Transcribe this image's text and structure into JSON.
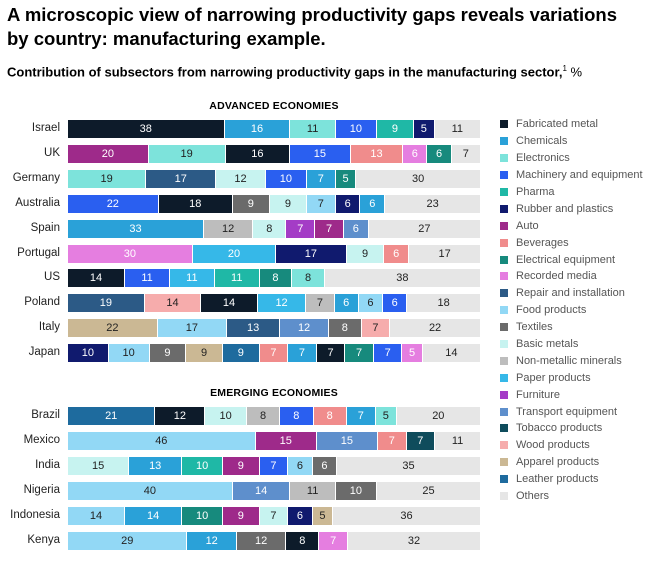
{
  "title": "A microscopic view of narrowing productivity gaps reveals variations by country: manufacturing example.",
  "subtitle": "Contribution of subsectors from narrowing productivity gaps in the manufacturing sector,",
  "footnote_mark": "1",
  "unit": "%",
  "chart_data": {
    "type": "bar",
    "orientation": "horizontal",
    "stacked": true,
    "legend_position": "right",
    "subsectors": [
      {
        "name": "Fabricated metal",
        "color": "#0d1b2a",
        "text": "#ffffff"
      },
      {
        "name": "Chemicals",
        "color": "#2aa1d8",
        "text": "#ffffff"
      },
      {
        "name": "Electronics",
        "color": "#7de3db",
        "text": "#222222"
      },
      {
        "name": "Machinery and equipment",
        "color": "#2a5ff0",
        "text": "#ffffff"
      },
      {
        "name": "Pharma",
        "color": "#1fb8a6",
        "text": "#ffffff"
      },
      {
        "name": "Rubber and plastics",
        "color": "#101a6e",
        "text": "#ffffff"
      },
      {
        "name": "Auto",
        "color": "#9e2a8a",
        "text": "#ffffff"
      },
      {
        "name": "Beverages",
        "color": "#f08c8c",
        "text": "#ffffff"
      },
      {
        "name": "Electrical equipment",
        "color": "#178a7d",
        "text": "#ffffff"
      },
      {
        "name": "Recorded media",
        "color": "#e57ee0",
        "text": "#ffffff"
      },
      {
        "name": "Repair and installation",
        "color": "#2c5a86",
        "text": "#ffffff"
      },
      {
        "name": "Food products",
        "color": "#92d8f5",
        "text": "#222222"
      },
      {
        "name": "Textiles",
        "color": "#6b6b6b",
        "text": "#ffffff"
      },
      {
        "name": "Basic metals",
        "color": "#c7f3f0",
        "text": "#222222"
      },
      {
        "name": "Non-metallic minerals",
        "color": "#bdbdbd",
        "text": "#222222"
      },
      {
        "name": "Paper products",
        "color": "#36b8e8",
        "text": "#ffffff"
      },
      {
        "name": "Furniture",
        "color": "#a43cc6",
        "text": "#ffffff"
      },
      {
        "name": "Transport equipment",
        "color": "#5e8fcc",
        "text": "#ffffff"
      },
      {
        "name": "Tobacco products",
        "color": "#0f4c5c",
        "text": "#ffffff"
      },
      {
        "name": "Wood products",
        "color": "#f6acac",
        "text": "#222222"
      },
      {
        "name": "Apparel products",
        "color": "#cbb894",
        "text": "#222222"
      },
      {
        "name": "Leather products",
        "color": "#1e6b9e",
        "text": "#ffffff"
      },
      {
        "name": "Others",
        "color": "#e6e6e6",
        "text": "#222222"
      }
    ],
    "groups": [
      {
        "name": "ADVANCED ECONOMIES",
        "rows": [
          {
            "country": "Israel",
            "segments": [
              [
                "Fabricated metal",
                38
              ],
              [
                "Chemicals",
                16
              ],
              [
                "Electronics",
                11
              ],
              [
                "Machinery and equipment",
                10
              ],
              [
                "Pharma",
                9
              ],
              [
                "Rubber and plastics",
                5
              ],
              [
                "Others",
                11
              ]
            ]
          },
          {
            "country": "UK",
            "segments": [
              [
                "Auto",
                20
              ],
              [
                "Electronics",
                19
              ],
              [
                "Fabricated metal",
                16
              ],
              [
                "Machinery and equipment",
                15
              ],
              [
                "Beverages",
                13
              ],
              [
                "Recorded media",
                6
              ],
              [
                "Electrical equipment",
                6
              ],
              [
                "Others",
                7
              ]
            ]
          },
          {
            "country": "Germany",
            "segments": [
              [
                "Electronics",
                19
              ],
              [
                "Repair and installation",
                17
              ],
              [
                "Basic metals",
                12
              ],
              [
                "Machinery and equipment",
                10
              ],
              [
                "Chemicals",
                7
              ],
              [
                "Electrical equipment",
                5
              ],
              [
                "Others",
                30
              ]
            ]
          },
          {
            "country": "Australia",
            "segments": [
              [
                "Machinery and equipment",
                22
              ],
              [
                "Fabricated metal",
                18
              ],
              [
                "Textiles",
                9
              ],
              [
                "Basic metals",
                9
              ],
              [
                "Food products",
                7
              ],
              [
                "Rubber and plastics",
                6
              ],
              [
                "Chemicals",
                6
              ],
              [
                "Others",
                23
              ]
            ]
          },
          {
            "country": "Spain",
            "segments": [
              [
                "Chemicals",
                33
              ],
              [
                "Non-metallic minerals",
                12
              ],
              [
                "Basic metals",
                8
              ],
              [
                "Furniture",
                7
              ],
              [
                "Auto",
                7
              ],
              [
                "Transport equipment",
                6
              ],
              [
                "Others",
                27
              ]
            ]
          },
          {
            "country": "Portugal",
            "segments": [
              [
                "Recorded media",
                30
              ],
              [
                "Paper products",
                20
              ],
              [
                "Rubber and plastics",
                17
              ],
              [
                "Basic metals",
                9
              ],
              [
                "Beverages",
                6
              ],
              [
                "Others",
                17
              ]
            ]
          },
          {
            "country": "US",
            "segments": [
              [
                "Fabricated metal",
                14
              ],
              [
                "Machinery and equipment",
                11
              ],
              [
                "Paper products",
                11
              ],
              [
                "Pharma",
                11
              ],
              [
                "Electrical equipment",
                8
              ],
              [
                "Electronics",
                8
              ],
              [
                "Others",
                38
              ]
            ]
          },
          {
            "country": "Poland",
            "segments": [
              [
                "Repair and installation",
                19
              ],
              [
                "Wood products",
                14
              ],
              [
                "Fabricated metal",
                14
              ],
              [
                "Paper products",
                12
              ],
              [
                "Non-metallic minerals",
                7
              ],
              [
                "Chemicals",
                6
              ],
              [
                "Food products",
                6
              ],
              [
                "Machinery and equipment",
                6
              ],
              [
                "Others",
                18
              ]
            ]
          },
          {
            "country": "Italy",
            "segments": [
              [
                "Apparel products",
                22
              ],
              [
                "Food products",
                17
              ],
              [
                "Repair and installation",
                13
              ],
              [
                "Transport equipment",
                12
              ],
              [
                "Textiles",
                8
              ],
              [
                "Wood products",
                7
              ],
              [
                "Others",
                22
              ]
            ]
          },
          {
            "country": "Japan",
            "segments": [
              [
                "Rubber and plastics",
                10
              ],
              [
                "Food products",
                10
              ],
              [
                "Textiles",
                9
              ],
              [
                "Apparel products",
                9
              ],
              [
                "Leather products",
                9
              ],
              [
                "Beverages",
                7
              ],
              [
                "Chemicals",
                7
              ],
              [
                "Fabricated metal",
                7
              ],
              [
                "Electrical equipment",
                7
              ],
              [
                "Machinery and equipment",
                7
              ],
              [
                "Recorded media",
                5
              ],
              [
                "Others",
                14
              ]
            ]
          }
        ]
      },
      {
        "name": "EMERGING ECONOMIES",
        "rows": [
          {
            "country": "Brazil",
            "segments": [
              [
                "Leather products",
                21
              ],
              [
                "Fabricated metal",
                12
              ],
              [
                "Basic metals",
                10
              ],
              [
                "Non-metallic minerals",
                8
              ],
              [
                "Machinery and equipment",
                8
              ],
              [
                "Beverages",
                8
              ],
              [
                "Chemicals",
                7
              ],
              [
                "Electronics",
                5
              ],
              [
                "Others",
                20
              ]
            ]
          },
          {
            "country": "Mexico",
            "segments": [
              [
                "Food products",
                46
              ],
              [
                "Auto",
                15
              ],
              [
                "Transport equipment",
                15
              ],
              [
                "Beverages",
                7
              ],
              [
                "Tobacco products",
                7
              ],
              [
                "Others",
                11
              ]
            ]
          },
          {
            "country": "India",
            "segments": [
              [
                "Basic metals",
                15
              ],
              [
                "Chemicals",
                13
              ],
              [
                "Pharma",
                10
              ],
              [
                "Auto",
                9
              ],
              [
                "Machinery and equipment",
                7
              ],
              [
                "Food products",
                6
              ],
              [
                "Textiles",
                6
              ],
              [
                "Others",
                35
              ]
            ]
          },
          {
            "country": "Nigeria",
            "segments": [
              [
                "Food products",
                40
              ],
              [
                "Transport equipment",
                14
              ],
              [
                "Non-metallic minerals",
                11
              ],
              [
                "Textiles",
                10
              ],
              [
                "Others",
                25
              ]
            ]
          },
          {
            "country": "Indonesia",
            "segments": [
              [
                "Food products",
                14
              ],
              [
                "Chemicals",
                14
              ],
              [
                "Electrical equipment",
                10
              ],
              [
                "Auto",
                9
              ],
              [
                "Basic metals",
                7
              ],
              [
                "Rubber and plastics",
                6
              ],
              [
                "Apparel products",
                5
              ],
              [
                "Others",
                36
              ]
            ]
          },
          {
            "country": "Kenya",
            "segments": [
              [
                "Food products",
                29
              ],
              [
                "Chemicals",
                12
              ],
              [
                "Textiles",
                12
              ],
              [
                "Fabricated metal",
                8
              ],
              [
                "Recorded media",
                7
              ],
              [
                "Others",
                32
              ]
            ]
          }
        ]
      }
    ]
  }
}
